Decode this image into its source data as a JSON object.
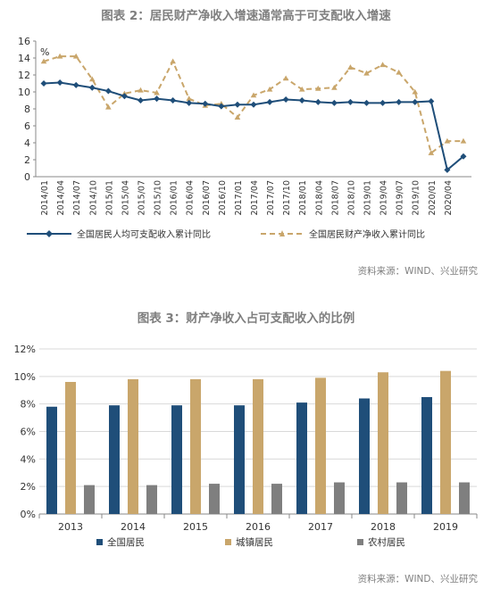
{
  "figure1": {
    "title": "图表 2：居民财产净收入增速通常高于可支配收入增速",
    "source": "资料来源：WIND、兴业研究",
    "unit": "%"
  },
  "figure2": {
    "title": "图表 3：财产净收入占可支配收入的比例",
    "source": "资料来源：WIND、兴业研究"
  },
  "colors": {
    "navy": "#1F4E79",
    "gold": "#C9A66B",
    "gray": "#7F7F7F"
  },
  "chart_data": [
    {
      "type": "line",
      "title": "图表 2：居民财产净收入增速通常高于可支配收入增速",
      "ylabel": "%",
      "ylim": [
        0,
        16
      ],
      "yticks": [
        0,
        2,
        4,
        6,
        8,
        10,
        12,
        14,
        16
      ],
      "grid": false,
      "legend": "bottom",
      "x": [
        "2014/01",
        "2014/04",
        "2014/07",
        "2014/10",
        "2015/01",
        "2015/04",
        "2015/07",
        "2015/10",
        "2016/01",
        "2016/04",
        "2016/07",
        "2016/10",
        "2017/01",
        "2017/04",
        "2017/07",
        "2017/10",
        "2018/01",
        "2018/04",
        "2018/07",
        "2018/10",
        "2019/01",
        "2019/04",
        "2019/07",
        "2019/10",
        "2020/01",
        "2020/04",
        "2020/06"
      ],
      "xticklabels": [
        "2014/01",
        "2014/04",
        "2014/07",
        "2014/10",
        "2015/01",
        "2015/04",
        "2015/07",
        "2015/10",
        "2016/01",
        "2016/04",
        "2016/07",
        "2016/10",
        "2017/01",
        "2017/04",
        "2017/07",
        "2017/10",
        "2018/01",
        "2018/04",
        "2018/07",
        "2018/10",
        "2019/01",
        "2019/04",
        "2019/07",
        "2019/10",
        "2020/01",
        "2020/04"
      ],
      "series": [
        {
          "name": "全国居民人均可支配收入累计同比",
          "values": [
            11.0,
            11.1,
            10.8,
            10.5,
            10.1,
            9.5,
            9.0,
            9.2,
            9.0,
            8.7,
            8.6,
            8.3,
            8.5,
            8.5,
            8.8,
            9.1,
            9.0,
            8.8,
            8.7,
            8.8,
            8.7,
            8.7,
            8.8,
            8.8,
            8.9,
            0.8,
            2.4
          ]
        },
        {
          "name": "全国居民财产净收入累计同比",
          "values": [
            13.6,
            14.2,
            14.2,
            11.5,
            8.2,
            9.8,
            10.2,
            9.9,
            13.6,
            9.2,
            8.4,
            8.6,
            7.0,
            9.6,
            10.3,
            11.6,
            10.3,
            10.4,
            10.5,
            12.9,
            12.2,
            13.2,
            12.3,
            10.0,
            2.8,
            4.2,
            4.2
          ]
        }
      ]
    },
    {
      "type": "bar",
      "title": "图表 3：财产净收入占可支配收入的比例",
      "categories": [
        "2013",
        "2014",
        "2015",
        "2016",
        "2017",
        "2018",
        "2019"
      ],
      "ylim": [
        0,
        12
      ],
      "yticks": [
        "0%",
        "2%",
        "4%",
        "6%",
        "8%",
        "10%",
        "12%"
      ],
      "grid": true,
      "legend": "bottom",
      "series": [
        {
          "name": "全国居民",
          "values": [
            7.8,
            7.9,
            7.9,
            7.9,
            8.1,
            8.4,
            8.5
          ]
        },
        {
          "name": "城镇居民",
          "values": [
            9.6,
            9.8,
            9.8,
            9.8,
            9.9,
            10.3,
            10.4
          ]
        },
        {
          "name": "农村居民",
          "values": [
            2.1,
            2.1,
            2.2,
            2.2,
            2.3,
            2.3,
            2.3
          ]
        }
      ]
    }
  ]
}
